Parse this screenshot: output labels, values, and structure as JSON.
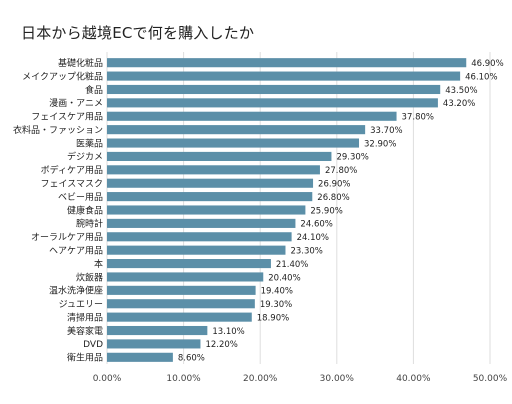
{
  "chart_data": {
    "type": "bar",
    "orientation": "horizontal",
    "title": "日本から越境ECで何を購入したか",
    "xlabel": "",
    "ylabel": "",
    "xlim": [
      0,
      50
    ],
    "x_ticks": [
      "0.00%",
      "10.00%",
      "20.00%",
      "30.00%",
      "40.00%",
      "50.00%"
    ],
    "grid": true,
    "legend": "none",
    "bar_color": "#5b8fa8",
    "categories": [
      "基礎化粧品",
      "メイクアップ化粧品",
      "食品",
      "漫画・アニメ",
      "フェイスケア用品",
      "衣料品・ファッション",
      "医薬品",
      "デジカメ",
      "ボディケア用品",
      "フェイスマスク",
      "ベビー用品",
      "健康食品",
      "腕時計",
      "オーラルケア用品",
      "ヘアケア用品",
      "本",
      "炊飯器",
      "温水洗浄便座",
      "ジュエリー",
      "清掃用品",
      "美容家電",
      "DVD",
      "衛生用品"
    ],
    "values": [
      46.9,
      46.1,
      43.5,
      43.2,
      37.8,
      33.7,
      32.9,
      29.3,
      27.8,
      26.9,
      26.8,
      25.9,
      24.6,
      24.1,
      23.3,
      21.4,
      20.4,
      19.4,
      19.3,
      18.9,
      13.1,
      12.2,
      8.6
    ],
    "value_labels": [
      "46.90%",
      "46.10%",
      "43.50%",
      "43.20%",
      "37.80%",
      "33.70%",
      "32.90%",
      "29.30%",
      "27.80%",
      "26.90%",
      "26.80%",
      "25.90%",
      "24.60%",
      "24.10%",
      "23.30%",
      "21.40%",
      "20.40%",
      "19.40%",
      "19.30%",
      "18.90%",
      "13.10%",
      "12.20%",
      "8.60%"
    ]
  }
}
